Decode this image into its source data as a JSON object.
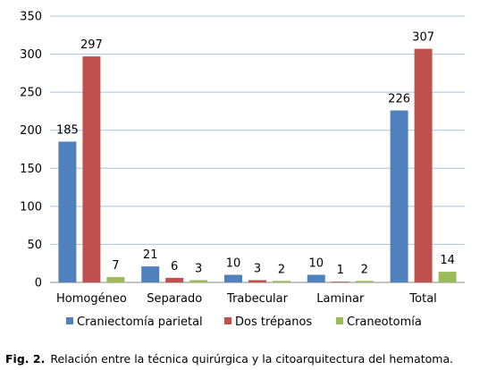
{
  "chart_data": {
    "type": "bar",
    "title": "",
    "xlabel": "",
    "ylabel": "",
    "categories": [
      "Homogéneo",
      "Separado",
      "Trabecular",
      "Laminar",
      "Total"
    ],
    "series": [
      {
        "name": "Craniectomía parietal",
        "values": [
          185,
          21,
          10,
          10,
          226
        ],
        "color": "#4F81BD"
      },
      {
        "name": "Dos trépanos",
        "values": [
          297,
          6,
          3,
          1,
          307
        ],
        "color": "#C0504D"
      },
      {
        "name": "Craneotomía",
        "values": [
          7,
          3,
          2,
          2,
          14
        ],
        "color": "#9BBB59"
      }
    ],
    "ylim": [
      0,
      350
    ],
    "yticks": [
      0,
      50,
      100,
      150,
      200,
      250,
      300,
      350
    ],
    "grid": true,
    "legend_position": "bottom"
  },
  "caption": {
    "label": "Fig. 2.",
    "text": "Relación entre la técnica quirúrgica y la citoarquitectura del hematoma."
  }
}
